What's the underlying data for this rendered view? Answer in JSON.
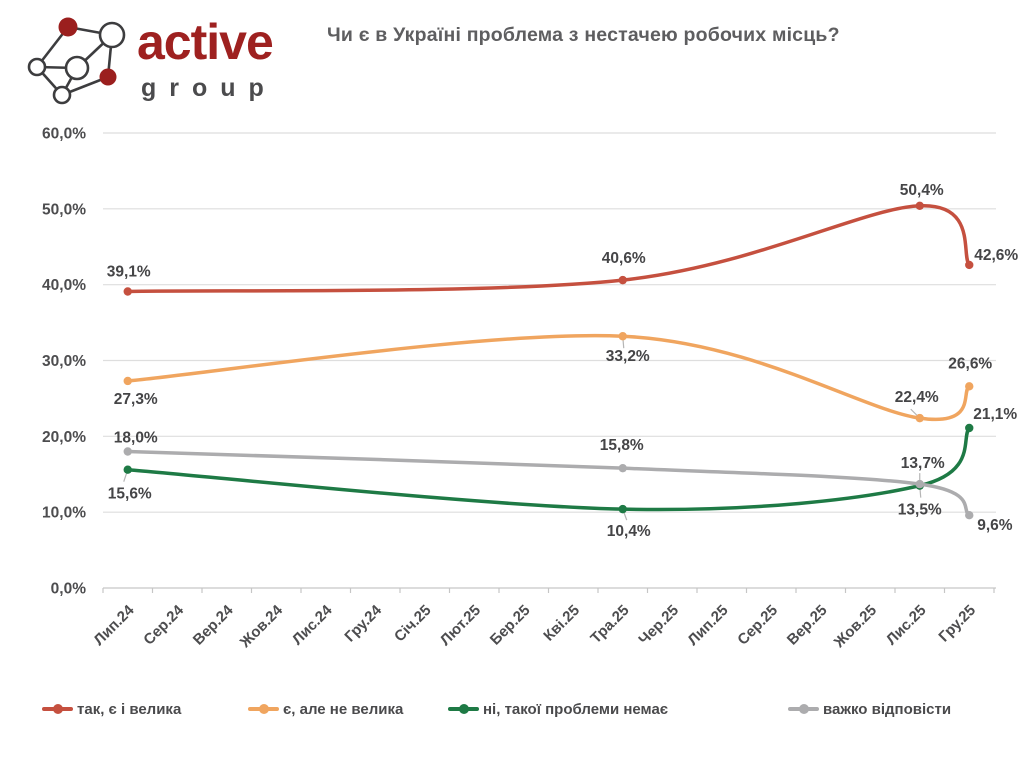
{
  "header": {
    "logo": {
      "brand": "active",
      "sub": "group"
    },
    "title": "Чи є в Україні проблема з нестачею робочих місць?"
  },
  "chart_data": {
    "type": "line",
    "title": "Чи є в Україні проблема з нестачею робочих місць?",
    "categories": [
      "Лип.24",
      "Сер.24",
      "Вер.24",
      "Жов.24",
      "Лис.24",
      "Гру.24",
      "Січ.25",
      "Лют.25",
      "Бер.25",
      "Кві.25",
      "Тра.25",
      "Чер.25",
      "Лип.25",
      "Сер.25",
      "Вер.25",
      "Жов.25",
      "Лис.25",
      "Гру.25"
    ],
    "y_axis": {
      "min": 0,
      "max": 60,
      "step": 10,
      "tick_format": "NN,N%"
    },
    "grid": true,
    "smooth_lines": true,
    "legend_position": "bottom",
    "value_decimal_separator": ",",
    "series": [
      {
        "name": "так, є і велика",
        "color": "#c5503f",
        "points": [
          {
            "category": "Лип.24",
            "value": 39.1,
            "dx": 1,
            "dy": -15
          },
          {
            "category": "Тра.25",
            "value": 40.6,
            "dx": 1,
            "dy": -17
          },
          {
            "category": "Лис.25",
            "value": 50.4,
            "dx": 2,
            "dy": -11
          },
          {
            "category": "Гру.25",
            "value": 42.6,
            "dx": 5,
            "dy": -5,
            "anchor": "start"
          }
        ]
      },
      {
        "name": "є, але не велика",
        "color": "#f0a55f",
        "points": [
          {
            "category": "Лип.24",
            "value": 27.3,
            "dx": 8,
            "dy": 23
          },
          {
            "category": "Тра.25",
            "value": 33.2,
            "dx": 5,
            "dy": 25,
            "leader": [
              1,
              12
            ]
          },
          {
            "category": "Лис.25",
            "value": 22.4,
            "dx": -3,
            "dy": -16,
            "leader": [
              -9,
              -9
            ]
          },
          {
            "category": "Гру.25",
            "value": 26.6,
            "dx": 1,
            "dy": -18
          }
        ]
      },
      {
        "name": "ні, такої проблеми немає",
        "color": "#1e7a45",
        "points": [
          {
            "category": "Лип.24",
            "value": 15.6,
            "dx": 2,
            "dy": 29,
            "leader": [
              -4,
              12
            ]
          },
          {
            "category": "Тра.25",
            "value": 10.4,
            "dx": 6,
            "dy": 27,
            "leader": [
              4,
              11
            ]
          },
          {
            "category": "Лис.25",
            "value": 13.5,
            "dx": 0,
            "dy": 29,
            "leader": [
              1,
              12
            ]
          },
          {
            "category": "Гру.25",
            "value": 21.1,
            "dx": 4,
            "dy": -9,
            "anchor": "start"
          }
        ]
      },
      {
        "name": "важко відповісти",
        "color": "#acacae",
        "points": [
          {
            "category": "Лип.24",
            "value": 18.0,
            "dx": 8,
            "dy": -9
          },
          {
            "category": "Тра.25",
            "value": 15.8,
            "dx": -1,
            "dy": -18
          },
          {
            "category": "Лис.25",
            "value": 13.7,
            "dx": 3,
            "dy": -16,
            "leader": [
              0,
              -11
            ]
          },
          {
            "category": "Гру.25",
            "value": 9.6,
            "dx": 8,
            "dy": 15,
            "anchor": "start"
          }
        ]
      }
    ]
  }
}
